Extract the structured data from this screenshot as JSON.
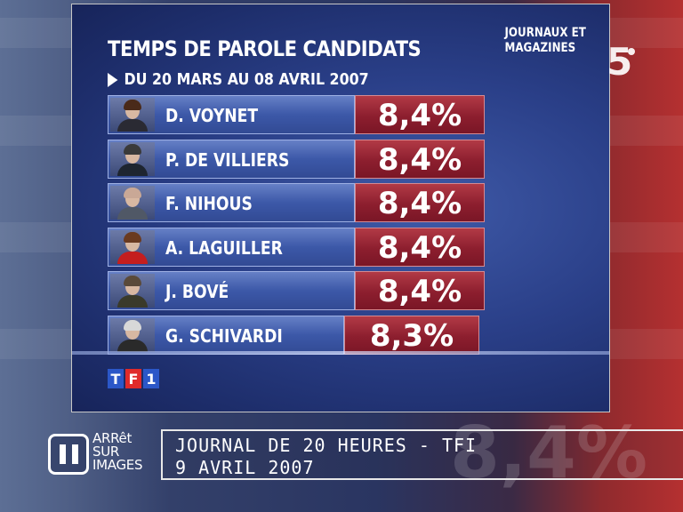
{
  "graphic": {
    "title": "TEMPS DE PAROLE CANDIDATS",
    "subtitle": "DU 20 MARS AU 08 AVRIL 2007",
    "category": "JOURNAUX ET MAGAZINES",
    "candidates": [
      {
        "name": "D. VOYNET",
        "percent": "8,4%"
      },
      {
        "name": "P. DE VILLIERS",
        "percent": "8,4%"
      },
      {
        "name": "F. NIHOUS",
        "percent": "8,4%"
      },
      {
        "name": "A. LAGUILLER",
        "percent": "8,4%"
      },
      {
        "name": "J. BOVÉ",
        "percent": "8,4%"
      },
      {
        "name": "G. SCHIVARDI",
        "percent": "8,3%"
      }
    ],
    "logo_letters": [
      "T",
      "F",
      "1"
    ]
  },
  "channel_logo": "5",
  "show_logo": {
    "line1": "ARRêt",
    "line2": "SUR",
    "line3": "IMAGES"
  },
  "source": {
    "line1": "JOURNAL DE 20 HEURES - TFI",
    "line2": "9 AVRIL 2007"
  },
  "background_text": "8,4%",
  "colors": {
    "panel_blue": "#2a3f88",
    "name_blue": "#3c58a8",
    "percent_red": "#8c1e2e"
  }
}
